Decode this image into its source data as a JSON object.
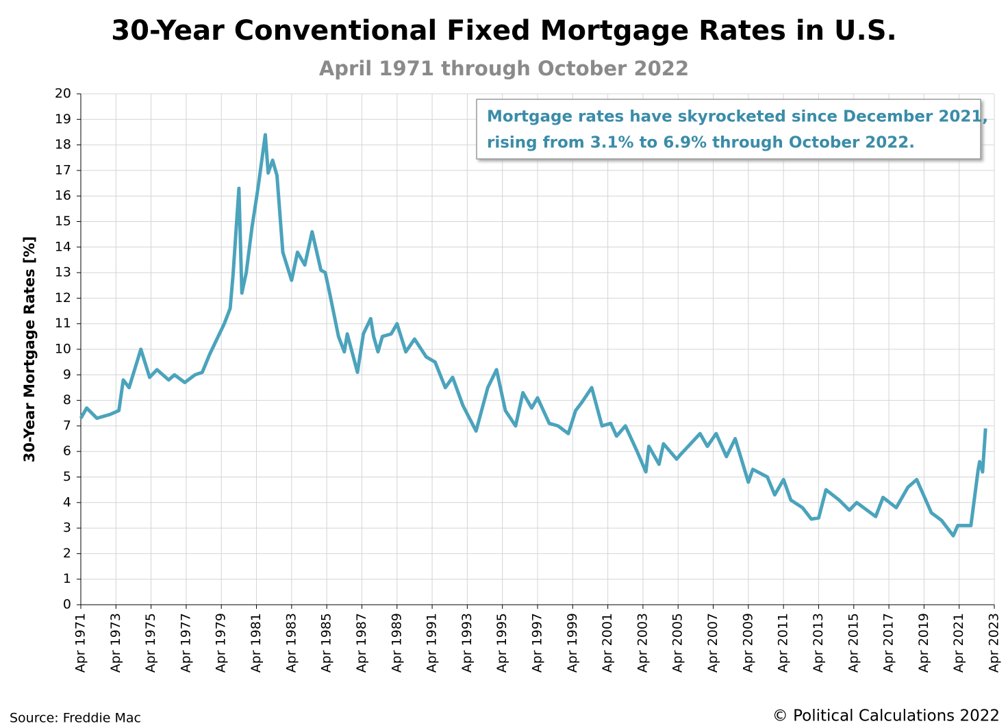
{
  "chart_data": {
    "type": "line",
    "title": "30-Year Conventional Fixed Mortgage Rates in U.S.",
    "subtitle": "April 1971 through October 2022",
    "y_label": "30-Year Mortgage Rates [%]",
    "annotation": [
      "Mortgage rates have skyrocketed since December 2021,",
      "rising from 3.1% to 6.9% through October 2022."
    ],
    "source": "Source: Freddie Mac",
    "credit": "© Political Calculations 2022",
    "color": "#4ba3bc",
    "grid": true,
    "x": [
      "1971-04",
      "1971-08",
      "1972-03",
      "1972-12",
      "1973-06",
      "1973-09",
      "1974-01",
      "1974-09",
      "1975-03",
      "1975-08",
      "1976-04",
      "1976-08",
      "1977-03",
      "1977-10",
      "1978-03",
      "1978-08",
      "1979-01",
      "1979-06",
      "1979-10",
      "1979-12",
      "1980-04",
      "1980-06",
      "1980-09",
      "1981-01",
      "1981-05",
      "1981-10",
      "1981-12",
      "1982-03",
      "1982-06",
      "1982-10",
      "1983-04",
      "1983-08",
      "1984-01",
      "1984-06",
      "1984-12",
      "1985-03",
      "1985-06",
      "1985-12",
      "1986-04",
      "1986-06",
      "1987-01",
      "1987-05",
      "1987-10",
      "1987-12",
      "1988-03",
      "1988-06",
      "1988-12",
      "1989-04",
      "1989-10",
      "1990-04",
      "1990-12",
      "1991-06",
      "1992-01",
      "1992-06",
      "1993-01",
      "1993-10",
      "1994-06",
      "1994-12",
      "1995-06",
      "1996-01",
      "1996-06",
      "1996-12",
      "1997-04",
      "1997-12",
      "1998-06",
      "1999-01",
      "1999-06",
      "1999-10",
      "2000-05",
      "2000-12",
      "2001-06",
      "2001-10",
      "2002-04",
      "2002-12",
      "2003-06",
      "2003-08",
      "2004-03",
      "2004-06",
      "2005-03",
      "2005-06",
      "2006-07",
      "2006-12",
      "2007-06",
      "2008-01",
      "2008-07",
      "2009-04",
      "2009-07",
      "2010-05",
      "2010-10",
      "2011-04",
      "2011-09",
      "2012-05",
      "2012-11",
      "2013-04",
      "2013-09",
      "2014-06",
      "2015-01",
      "2015-06",
      "2016-07",
      "2016-12",
      "2017-09",
      "2018-05",
      "2018-11",
      "2019-09",
      "2020-04",
      "2020-12",
      "2021-03",
      "2021-12",
      "2022-05",
      "2022-06",
      "2022-08",
      "2022-10"
    ],
    "values": [
      7.3,
      7.7,
      7.3,
      7.45,
      7.6,
      8.8,
      8.5,
      10.0,
      8.9,
      9.2,
      8.8,
      9.0,
      8.7,
      9.0,
      9.1,
      9.8,
      10.4,
      11.0,
      11.6,
      12.9,
      16.3,
      12.2,
      13.0,
      14.8,
      16.3,
      18.4,
      16.9,
      17.4,
      16.8,
      13.8,
      12.7,
      13.8,
      13.3,
      14.6,
      13.1,
      13.0,
      12.2,
      10.5,
      9.9,
      10.6,
      9.1,
      10.6,
      11.2,
      10.5,
      9.9,
      10.5,
      10.6,
      11.0,
      9.9,
      10.4,
      9.7,
      9.5,
      8.5,
      8.9,
      7.8,
      6.8,
      8.5,
      9.2,
      7.6,
      7.0,
      8.3,
      7.7,
      8.1,
      7.1,
      7.0,
      6.7,
      7.6,
      7.9,
      8.5,
      7.0,
      7.1,
      6.6,
      7.0,
      6.0,
      5.2,
      6.2,
      5.5,
      6.3,
      5.7,
      5.9,
      6.7,
      6.2,
      6.7,
      5.8,
      6.5,
      4.8,
      5.3,
      5.0,
      4.3,
      4.9,
      4.1,
      3.8,
      3.35,
      3.4,
      4.5,
      4.1,
      3.7,
      4.0,
      3.45,
      4.2,
      3.8,
      4.6,
      4.9,
      3.6,
      3.3,
      2.7,
      3.1,
      3.1,
      5.3,
      5.6,
      5.2,
      6.9
    ],
    "xlim": [
      "1971-04",
      "2023-04"
    ],
    "xticks": [
      {
        "value": "1971-04",
        "label": "Apr 1971"
      },
      {
        "value": "1973-04",
        "label": "Apr 1973"
      },
      {
        "value": "1975-04",
        "label": "Apr 1975"
      },
      {
        "value": "1977-04",
        "label": "Apr 1977"
      },
      {
        "value": "1979-04",
        "label": "Apr 1979"
      },
      {
        "value": "1981-04",
        "label": "Apr 1981"
      },
      {
        "value": "1983-04",
        "label": "Apr 1983"
      },
      {
        "value": "1985-04",
        "label": "Apr 1985"
      },
      {
        "value": "1987-04",
        "label": "Apr 1987"
      },
      {
        "value": "1989-04",
        "label": "Apr 1989"
      },
      {
        "value": "1991-04",
        "label": "Apr 1991"
      },
      {
        "value": "1993-04",
        "label": "Apr 1993"
      },
      {
        "value": "1995-04",
        "label": "Apr 1995"
      },
      {
        "value": "1997-04",
        "label": "Apr 1997"
      },
      {
        "value": "1999-04",
        "label": "Apr 1999"
      },
      {
        "value": "2001-04",
        "label": "Apr 2001"
      },
      {
        "value": "2003-04",
        "label": "Apr 2003"
      },
      {
        "value": "2005-04",
        "label": "Apr 2005"
      },
      {
        "value": "2007-04",
        "label": "Apr 2007"
      },
      {
        "value": "2009-04",
        "label": "Apr 2009"
      },
      {
        "value": "2011-04",
        "label": "Apr 2011"
      },
      {
        "value": "2013-04",
        "label": "Apr 2013"
      },
      {
        "value": "2015-04",
        "label": "Apr 2015"
      },
      {
        "value": "2017-04",
        "label": "Apr 2017"
      },
      {
        "value": "2019-04",
        "label": "Apr 2019"
      },
      {
        "value": "2021-04",
        "label": "Apr 2021"
      },
      {
        "value": "2023-04",
        "label": "Apr 2023"
      }
    ],
    "ylim": [
      0,
      20
    ],
    "yticks": [
      0,
      1,
      2,
      3,
      4,
      5,
      6,
      7,
      8,
      9,
      10,
      11,
      12,
      13,
      14,
      15,
      16,
      17,
      18,
      19,
      20
    ]
  }
}
